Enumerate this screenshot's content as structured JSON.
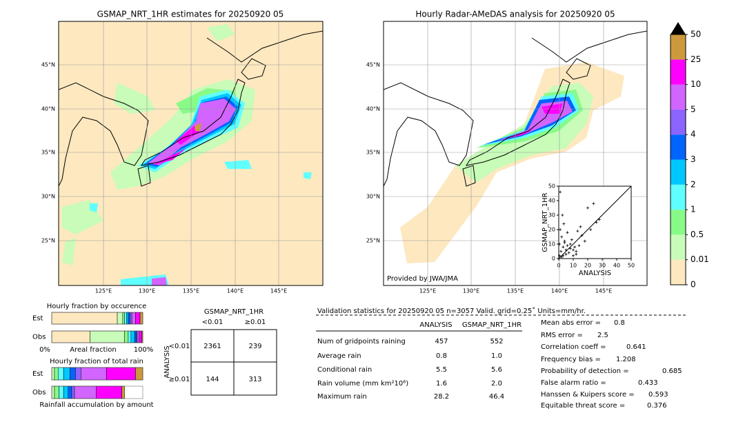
{
  "maps": [
    {
      "title": "GSMAP_NRT_1HR estimates for 20250920 05",
      "lat_labels": [
        "45°N",
        "40°N",
        "35°N",
        "30°N",
        "25°N"
      ],
      "lon_labels": [
        "125°E",
        "130°E",
        "135°E",
        "140°E",
        "145°E"
      ]
    },
    {
      "title": "Hourly Radar-AMeDAS analysis for 20250920 05",
      "lat_labels": [
        "45°N",
        "40°N",
        "35°N",
        "30°N",
        "25°N"
      ],
      "lon_labels": [
        "125°E",
        "130°E",
        "135°E",
        "140°E",
        "145°E"
      ],
      "credit": "Provided by JWA/JMA"
    }
  ],
  "colorbar": {
    "ticks": [
      0,
      0.01,
      0.5,
      1,
      2,
      3,
      4,
      5,
      10,
      25,
      50
    ],
    "colors": [
      "#fde8c0",
      "#c8fcb8",
      "#88fa88",
      "#60ffff",
      "#00c8ff",
      "#0064ff",
      "#8c64ff",
      "#d264ff",
      "#ff00ff",
      "#cc9a3c"
    ],
    "over_color": "#000000"
  },
  "chart_data": {
    "type": "scatter",
    "xlabel": "ANALYSIS",
    "ylabel": "GSMAP_NRT_1HR",
    "xlim": [
      0,
      50
    ],
    "ylim": [
      0,
      50
    ],
    "xticks": [
      0,
      10,
      20,
      30,
      40,
      50
    ],
    "yticks": [
      0,
      10,
      20,
      30,
      40,
      50
    ],
    "x": [
      0.5,
      1,
      1.5,
      2,
      2.5,
      3,
      3.5,
      4,
      5,
      6,
      7,
      8,
      9,
      10,
      11,
      12,
      13,
      14,
      15,
      16,
      18,
      20,
      22,
      24,
      26,
      28,
      3,
      5,
      2,
      8,
      1,
      4,
      6,
      10,
      12,
      0.5
    ],
    "y": [
      10,
      20,
      5,
      15,
      30,
      8,
      24,
      12,
      6,
      18,
      4,
      10,
      13,
      2,
      8,
      5,
      19,
      9,
      22,
      16,
      12,
      35,
      20,
      38,
      25,
      27,
      2,
      3,
      1,
      7,
      46,
      11,
      9,
      6,
      3,
      2
    ]
  },
  "occurrence": {
    "title": "Hourly fraction by occurence",
    "rows": [
      {
        "name": "Est",
        "values": [
          72,
          6,
          2,
          2,
          2,
          2,
          2,
          4,
          5,
          3
        ]
      },
      {
        "name": "Obs",
        "values": [
          42,
          38,
          4,
          3,
          4,
          2,
          1,
          2,
          3,
          1
        ]
      }
    ],
    "axis_start": "0%",
    "axis_label": "Areal fraction",
    "axis_end": "100%"
  },
  "total_rain": {
    "title": "Hourly fraction of total rain",
    "rows": [
      {
        "name": "Est",
        "values": [
          0,
          3,
          4,
          6,
          7,
          6,
          6,
          28,
          32,
          8
        ]
      },
      {
        "name": "Obs",
        "values": [
          0,
          3,
          5,
          5,
          5,
          4,
          3,
          24,
          28,
          3
        ]
      }
    ],
    "footer": "Rainfall accumulation by amount"
  },
  "contingency": {
    "col_title": "GSMAP_NRT_1HR",
    "col_labels": [
      "<0.01",
      "≥0.01"
    ],
    "row_title": "ANALYSIS",
    "row_labels": [
      "<0.01",
      "≥0.01"
    ],
    "cells": [
      [
        "2361",
        "239"
      ],
      [
        "144",
        "313"
      ]
    ]
  },
  "stats": {
    "title": "Validation statistics for 20250920 05  n=3057 Valid. grid=0.25˚ Units=mm/hr.",
    "columns": [
      "ANALYSIS",
      "GSMAP_NRT_1HR"
    ],
    "rows": [
      [
        "Num of gridpoints raining",
        "457",
        "552"
      ],
      [
        "Average rain",
        "0.8",
        "1.0"
      ],
      [
        "Conditional rain",
        "5.5",
        "5.6"
      ],
      [
        "Rain volume (mm km²10⁶)",
        "1.6",
        "2.0"
      ],
      [
        "Maximum rain",
        "28.2",
        "46.4"
      ]
    ],
    "scores": [
      [
        "Mean abs error =",
        "0.8"
      ],
      [
        "RMS error =",
        "2.5"
      ],
      [
        "Correlation coeff =",
        "0.641"
      ],
      [
        "Frequency bias =",
        "1.208"
      ],
      [
        "Probability of detection =",
        "0.685"
      ],
      [
        "False alarm ratio =",
        "0.433"
      ],
      [
        "Hanssen & Kuipers score =",
        "0.593"
      ],
      [
        "Equitable threat score =",
        "0.376"
      ]
    ]
  }
}
